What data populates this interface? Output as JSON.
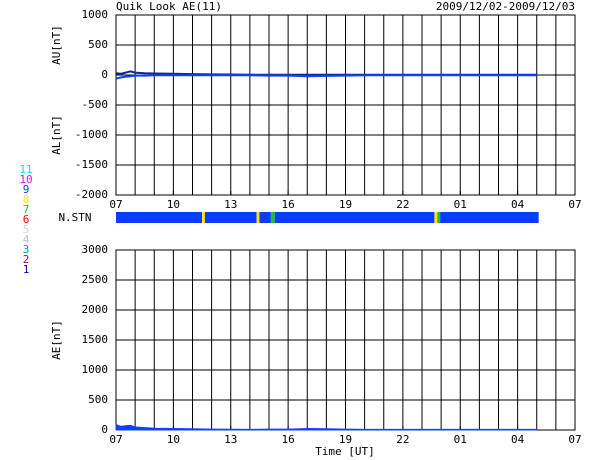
{
  "chart_data": [
    {
      "type": "line",
      "title": "Quik Look AE(11)",
      "subtitle": "2009/12/02-2009/12/03",
      "ylabels": [
        "AU[nT]",
        "AL[nT]"
      ],
      "xlim": [
        0,
        24
      ],
      "x_grid_step": 1,
      "xticks": [
        {
          "value": 0,
          "label": "07"
        },
        {
          "value": 3,
          "label": "10"
        },
        {
          "value": 6,
          "label": "13"
        },
        {
          "value": 9,
          "label": "16"
        },
        {
          "value": 12,
          "label": "19"
        },
        {
          "value": 15,
          "label": "22"
        },
        {
          "value": 18,
          "label": "01"
        },
        {
          "value": 21,
          "label": "04"
        },
        {
          "value": 24,
          "label": "07"
        }
      ],
      "ylim": [
        -2000,
        1000
      ],
      "yticks": [
        -2000,
        -1500,
        -1000,
        -500,
        0,
        500,
        1000
      ],
      "grid": true,
      "x": [
        0,
        0.25,
        0.5,
        0.75,
        1,
        1.5,
        2,
        3,
        4,
        5,
        6,
        7,
        8,
        9,
        10,
        11,
        12,
        13,
        14,
        15,
        16,
        17,
        18,
        19,
        20,
        21,
        22
      ],
      "series": [
        {
          "name": "AU",
          "color": "#0a2a8a",
          "values": [
            30,
            20,
            40,
            60,
            40,
            30,
            25,
            20,
            15,
            10,
            8,
            5,
            5,
            5,
            5,
            5,
            5,
            5,
            5,
            5,
            5,
            5,
            5,
            5,
            5,
            5,
            5
          ]
        },
        {
          "name": "AL",
          "color": "#1040ff",
          "values": [
            -60,
            -40,
            -30,
            -20,
            -10,
            -10,
            -5,
            -5,
            -5,
            -5,
            -5,
            -5,
            -10,
            -10,
            -20,
            -15,
            -10,
            -5,
            -5,
            -5,
            -5,
            -5,
            -5,
            -5,
            -5,
            -5,
            -5
          ]
        }
      ]
    },
    {
      "type": "strip",
      "label": "N.STN",
      "xlim": [
        0,
        24
      ],
      "legend": [
        11,
        10,
        9,
        8,
        7,
        6,
        5,
        4,
        3,
        2,
        1
      ],
      "legend_colors": [
        "#00e0ff",
        "#ff00ff",
        "#0a3cff",
        "#ffe020",
        "#20c020",
        "#ff0000",
        "#d8d8d8",
        "#c0c0c0",
        "#00a0a0",
        "#a000a0",
        "#0000c0"
      ],
      "bins": [
        0,
        4.5,
        4.65,
        7.35,
        7.5,
        8.1,
        8.3,
        16.65,
        16.8,
        16.95,
        22.1
      ],
      "values": [
        9,
        8,
        9,
        8,
        9,
        7,
        9,
        8,
        7,
        9
      ]
    },
    {
      "type": "area",
      "ylabel": "AE[nT]",
      "xlabel": "Time [UT]",
      "xlim": [
        0,
        24
      ],
      "x_grid_step": 1,
      "xticks": [
        {
          "value": 0,
          "label": "07"
        },
        {
          "value": 3,
          "label": "10"
        },
        {
          "value": 6,
          "label": "13"
        },
        {
          "value": 9,
          "label": "16"
        },
        {
          "value": 12,
          "label": "19"
        },
        {
          "value": 15,
          "label": "22"
        },
        {
          "value": 18,
          "label": "01"
        },
        {
          "value": 21,
          "label": "04"
        },
        {
          "value": 24,
          "label": "07"
        }
      ],
      "ylim": [
        0,
        3000
      ],
      "yticks": [
        0,
        500,
        1000,
        1500,
        2000,
        2500,
        3000
      ],
      "grid": true,
      "x": [
        0,
        0.25,
        0.5,
        0.75,
        1,
        1.5,
        2,
        3,
        4,
        5,
        6,
        7,
        8,
        9,
        10,
        11,
        12,
        13,
        14,
        15,
        16,
        17,
        18,
        19,
        20,
        21,
        22
      ],
      "series": [
        {
          "name": "AE",
          "color": "#1040ff",
          "values": [
            90,
            60,
            70,
            80,
            50,
            40,
            30,
            25,
            20,
            15,
            13,
            10,
            15,
            15,
            25,
            20,
            15,
            10,
            10,
            10,
            10,
            10,
            10,
            10,
            10,
            10,
            10
          ]
        }
      ]
    }
  ]
}
